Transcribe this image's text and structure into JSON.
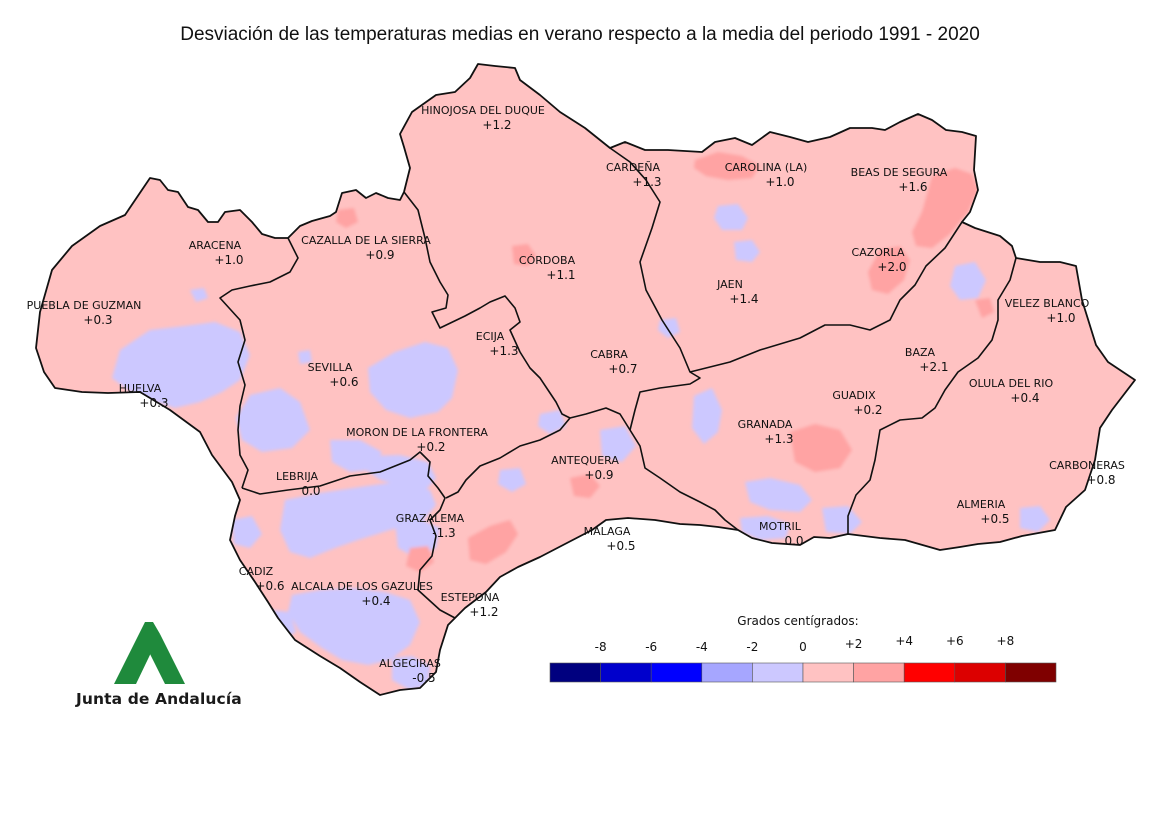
{
  "title": "Desviación de las temperaturas medias en verano respecto a la media del periodo 1991 - 2020",
  "brand": "Junta de Andalucía",
  "legend": {
    "title": "Grados centígrados:",
    "ticks": [
      "-8",
      "-6",
      "-4",
      "-2",
      "0",
      "+2",
      "+4",
      "+6",
      "+8"
    ],
    "colors": [
      "#00007f",
      "#0000cc",
      "#0000ff",
      "#a6a6ff",
      "#ccc8ff",
      "#ffc2c2",
      "#ffa3a3",
      "#ff0000",
      "#dc0000",
      "#7f0000"
    ]
  },
  "colors": {
    "base": "#ffc2c2",
    "cool": "#ccc8ff",
    "warm": "#ffa3a3",
    "border": "#111111",
    "logo_green": "#1f8a3c"
  },
  "stations": [
    {
      "name": "HINOJOSA DEL DUQUE",
      "value": "+1.2"
    },
    {
      "name": "CARDEÑA",
      "value": "+1.3"
    },
    {
      "name": "CAROLINA (LA)",
      "value": "+1.0"
    },
    {
      "name": "BEAS DE SEGURA",
      "value": "+1.6"
    },
    {
      "name": "ARACENA",
      "value": "+1.0"
    },
    {
      "name": "CAZALLA DE LA SIERRA",
      "value": "+0.9"
    },
    {
      "name": "CÓRDOBA",
      "value": "+1.1"
    },
    {
      "name": "CAZORLA",
      "value": "+2.0"
    },
    {
      "name": "JAEN",
      "value": "+1.4"
    },
    {
      "name": "PUEBLA DE GUZMAN",
      "value": "+0.3"
    },
    {
      "name": "VELEZ BLANCO",
      "value": "+1.0"
    },
    {
      "name": "ECIJA",
      "value": "+1.3"
    },
    {
      "name": "BAZA",
      "value": "+2.1"
    },
    {
      "name": "SEVILLA",
      "value": "+0.6"
    },
    {
      "name": "CABRA",
      "value": "+0.7"
    },
    {
      "name": "OLULA DEL RIO",
      "value": "+0.4"
    },
    {
      "name": "HUELVA",
      "value": "+0.3"
    },
    {
      "name": "GUADIX",
      "value": "+0.2"
    },
    {
      "name": "GRANADA",
      "value": "+1.3"
    },
    {
      "name": "MORON DE LA FRONTERA",
      "value": "+0.2"
    },
    {
      "name": "ANTEQUERA",
      "value": "+0.9"
    },
    {
      "name": "CARBONERAS",
      "value": "+0.8"
    },
    {
      "name": "LEBRIJA",
      "value": "0.0"
    },
    {
      "name": "ALMERIA",
      "value": "+0.5"
    },
    {
      "name": "GRAZALEMA",
      "value": "-1.3"
    },
    {
      "name": "MOTRIL",
      "value": "0.0"
    },
    {
      "name": "MALAGA",
      "value": "+0.5"
    },
    {
      "name": "CADIZ",
      "value": "+0.6"
    },
    {
      "name": "ALCALA DE LOS GAZULES",
      "value": "+0.4"
    },
    {
      "name": "ESTEPONA",
      "value": "+1.2"
    },
    {
      "name": "ALGECIRAS",
      "value": "-0.5"
    }
  ]
}
